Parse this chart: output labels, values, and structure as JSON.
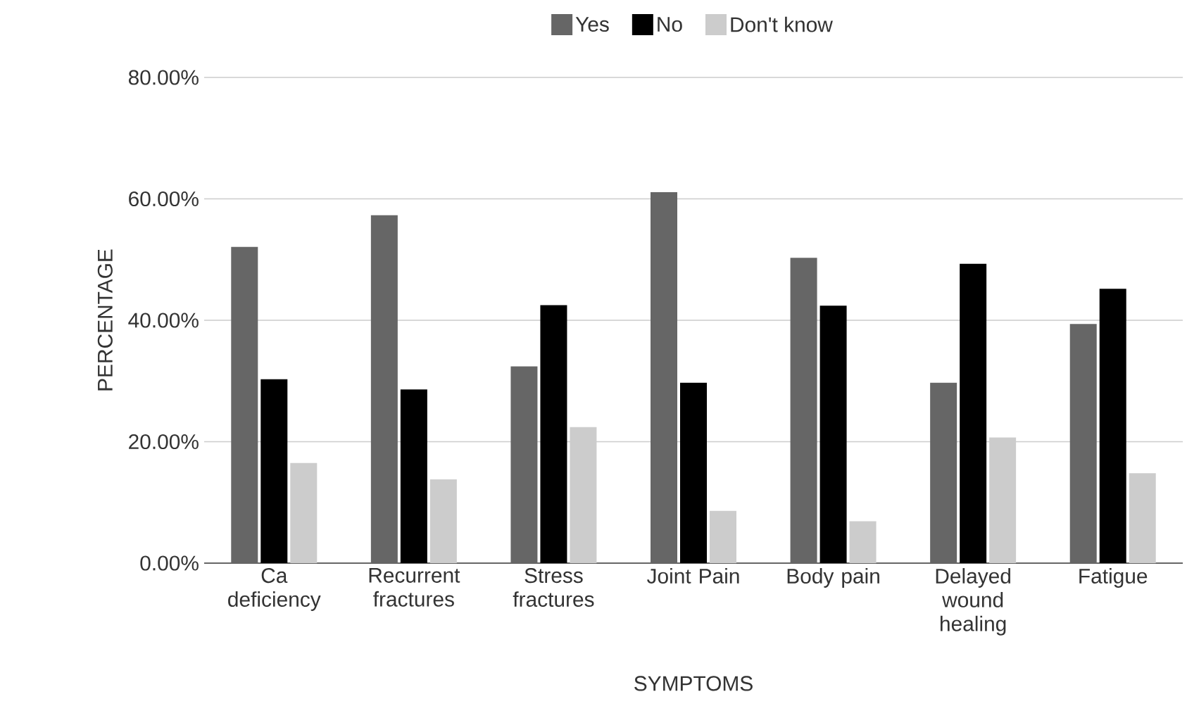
{
  "chart_data": {
    "type": "bar",
    "xlabel": "SYMPTOMS",
    "ylabel": "PERCENTAGE",
    "categories": [
      "Ca deficiency",
      "Recurrent fractures",
      "Stress fractures",
      "Joint Pain",
      "Body pain",
      "Delayed wound healing",
      "Fatigue"
    ],
    "series": [
      {
        "name": "Yes",
        "color": "#666666",
        "values": [
          52.1,
          57.3,
          32.4,
          61.1,
          50.3,
          29.7,
          39.4
        ]
      },
      {
        "name": "No",
        "color": "#000000",
        "values": [
          30.3,
          28.6,
          42.5,
          29.7,
          42.4,
          49.3,
          45.2
        ]
      },
      {
        "name": "Don't know",
        "color": "#cccccc",
        "values": [
          16.5,
          13.8,
          22.4,
          8.6,
          6.9,
          20.7,
          14.8
        ]
      }
    ],
    "ylim": [
      0,
      80
    ],
    "yticks": [
      {
        "value": 0,
        "label": "0.00%"
      },
      {
        "value": 20,
        "label": "20.00%"
      },
      {
        "value": 40,
        "label": "40.00%"
      },
      {
        "value": 60,
        "label": "60.00%"
      },
      {
        "value": 80,
        "label": "80.00%"
      }
    ],
    "grid": "y",
    "legend": "top"
  }
}
